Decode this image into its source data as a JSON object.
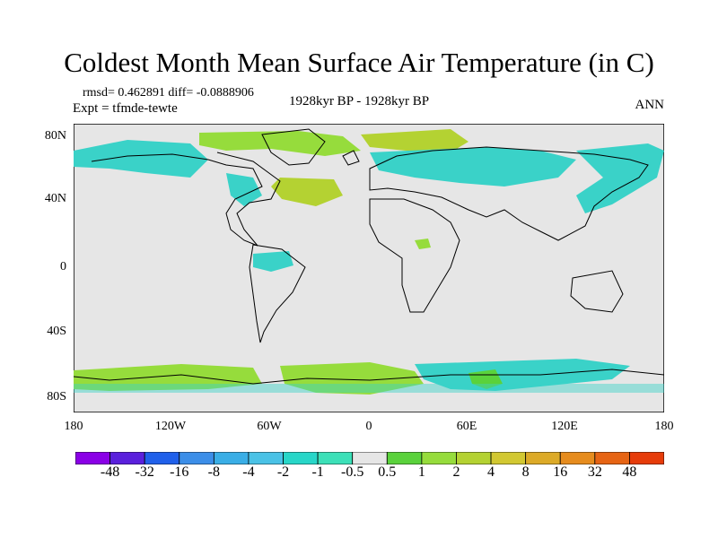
{
  "title": "Coldest Month Mean Surface Air Temperature (in C)",
  "stats": {
    "rmsd": "rmsd= 0.462891  diff= -0.0888906",
    "expt": "Expt = tfmde-tewte",
    "period": "1928kyr BP - 1928kyr BP",
    "season": "ANN"
  },
  "axes": {
    "y_ticks": [
      "80N",
      "40N",
      "0",
      "40S",
      "80S"
    ],
    "x_ticks": [
      "180",
      "120W",
      "60W",
      "0",
      "60E",
      "120E",
      "180"
    ]
  },
  "colorbar": {
    "colors": [
      "#8a00e6",
      "#5a20dc",
      "#2060ea",
      "#3c8ee8",
      "#3aaee6",
      "#4ac2e6",
      "#28d6c8",
      "#3ce0b8",
      "#e6e6e6",
      "#5ad23c",
      "#96dc3c",
      "#b4d232",
      "#d2c832",
      "#dcaa28",
      "#e68c1e",
      "#e66414",
      "#e63c0a"
    ],
    "labels": [
      "-48",
      "-32",
      "-16",
      "-8",
      "-4",
      "-2",
      "-1",
      "-0.5",
      "0.5",
      "1",
      "2",
      "4",
      "8",
      "16",
      "32",
      "48"
    ]
  }
}
